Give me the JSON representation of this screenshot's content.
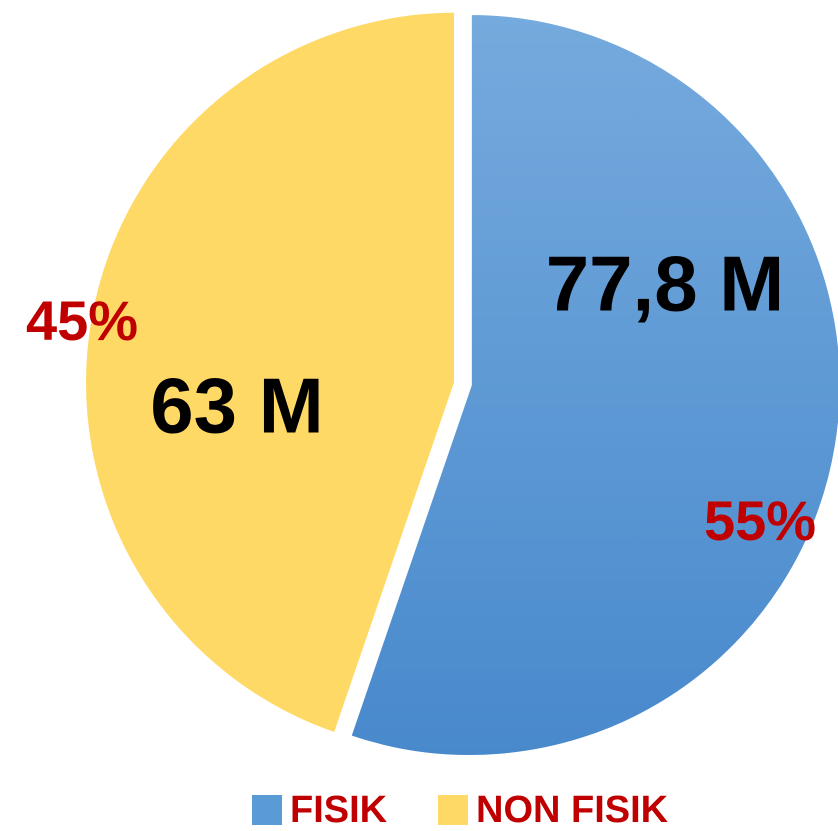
{
  "chart_data": {
    "type": "pie",
    "categories": [
      "FISIK",
      "NON FISIK"
    ],
    "values": [
      77.8,
      63
    ],
    "value_labels": [
      "77,8 M",
      "63 M"
    ],
    "percentages": [
      55,
      45
    ],
    "percentage_labels": [
      "55%",
      "45%"
    ],
    "colors": [
      "#5b9bd5",
      "#ffd966"
    ],
    "legend": "bottom"
  }
}
